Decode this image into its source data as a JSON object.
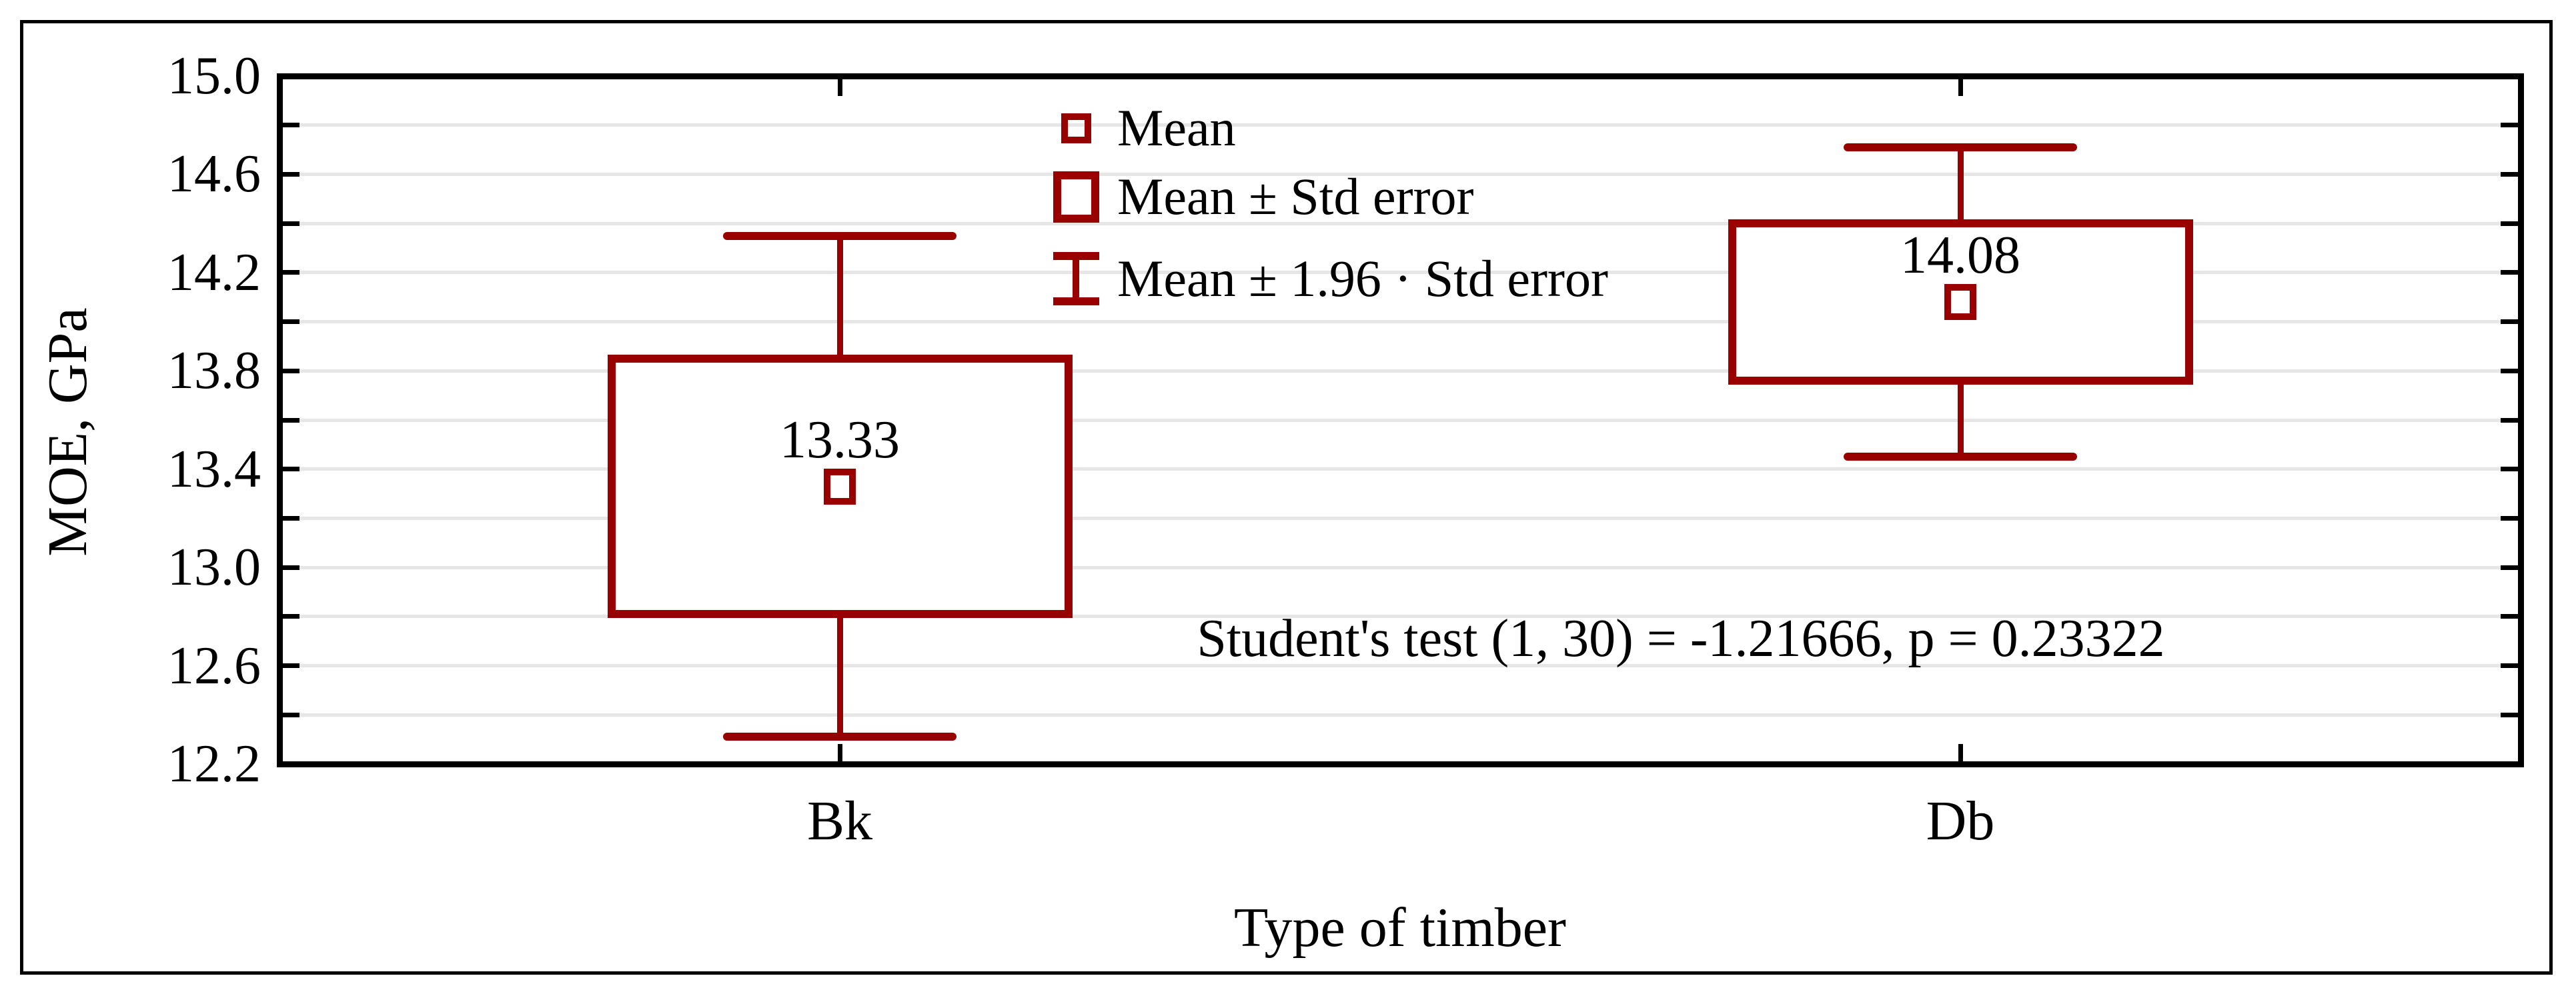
{
  "figure": {
    "background": "#ffffff",
    "border_color": "#000000"
  },
  "chart_data": {
    "type": "box",
    "variant": "mean-stderror-boxplot",
    "xlabel": "Type of timber",
    "ylabel": "MOE, GPa",
    "ylim": [
      12.2,
      15.0
    ],
    "ytick_minor_step": 0.2,
    "ytick_labels": [
      "15.0",
      "14.6",
      "14.2",
      "13.8",
      "13.4",
      "13.0",
      "12.6",
      "12.2"
    ],
    "grid": "horizontal",
    "grid_color": "#e6e6e6",
    "frame_color": "#000000",
    "series_color": "#990000",
    "categories": [
      "Bk",
      "Db"
    ],
    "series": [
      {
        "category": "Bk",
        "mean": 13.33,
        "mean_label": "13.33",
        "box_low": 12.81,
        "box_high": 13.85,
        "whisker_low": 12.31,
        "whisker_high": 14.35
      },
      {
        "category": "Db",
        "mean": 14.08,
        "mean_label": "14.08",
        "box_low": 13.76,
        "box_high": 14.4,
        "whisker_low": 13.45,
        "whisker_high": 14.71
      }
    ],
    "annotation": "Student's test (1, 30) = -1.21666, p = 0.23322",
    "legend_position": "top-center-inside",
    "legend": [
      {
        "symbol": "mean-square",
        "label": "Mean"
      },
      {
        "symbol": "box",
        "label": "Mean ± Std error"
      },
      {
        "symbol": "whisker",
        "label": "Mean ± 1.96 · Std error"
      }
    ]
  }
}
